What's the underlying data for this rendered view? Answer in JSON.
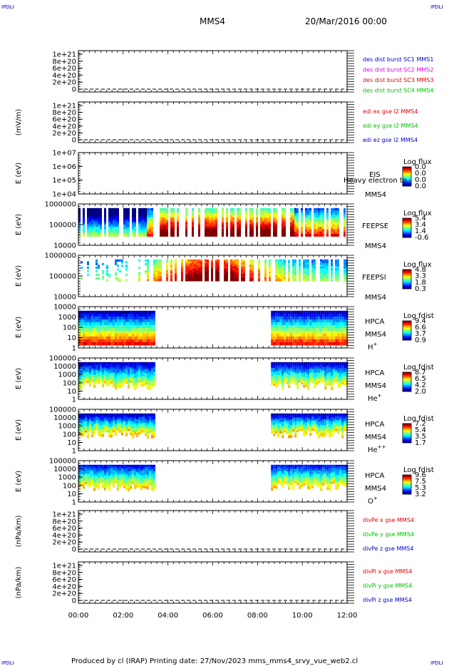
{
  "corner_label": "IPDLI",
  "header": {
    "spacecraft": "MMS4",
    "datetime": "20/Mar/2016 00:00"
  },
  "footer": {
    "text": "Produced by cl (IRAP)   Printing date: 27/Nov/2023   mms_mms4_srvy_vue_web2.cl"
  },
  "colors": {
    "red": "#e00000",
    "magenta": "#e000e0",
    "green": "#00c000",
    "blue": "#0000c0",
    "black": "#000000"
  },
  "chart_data": {
    "type": "heatmap",
    "x_ticks": [
      "00:00",
      "02:00",
      "04:00",
      "06:00",
      "08:00",
      "10:00",
      "12:00"
    ],
    "xlim": [
      "00:00",
      "12:00"
    ],
    "panels": [
      {
        "kind": "line",
        "ylabel": "",
        "yticks": [
          "1e+21",
          "8e+20",
          "6e+20",
          "4e+20",
          "2e+20",
          "0"
        ],
        "legend": [
          {
            "text": "des dist burst SC1 MMS1",
            "color": "blue"
          },
          {
            "text": "des dist burst SC2 MMS2",
            "color": "magenta"
          },
          {
            "text": "des dist burst SC3 MMS3",
            "color": "red"
          },
          {
            "text": "des dist burst SC4 MMS4",
            "color": "green"
          }
        ]
      },
      {
        "kind": "line",
        "ylabel": "(mV/m)",
        "yticks": [
          "1e+21",
          "8e+20",
          "6e+20",
          "4e+20",
          "2e+20",
          "0"
        ],
        "legend": [
          {
            "text": "edi ex gse l2 MMS4",
            "color": "red"
          },
          {
            "text": "edi ey gse l2 MMS4",
            "color": "green"
          },
          {
            "text": "edi ez gse l2 MMS4",
            "color": "blue"
          }
        ]
      },
      {
        "kind": "spec",
        "ylabel": "E (eV)",
        "yticks": [
          "1e+07",
          "1e+06",
          "1e+05",
          "1e+04"
        ],
        "instrument": "EIS",
        "instrument_extra": "Heavy electron to",
        "sc": "MMS4",
        "species": "",
        "cbar_title": "Log flux",
        "cbar_ticks": [
          "0.0",
          "0.0",
          "0.0",
          "0.0"
        ],
        "segments": []
      },
      {
        "kind": "spec",
        "ylabel": "E (eV)",
        "yticks": [
          "1000000",
          "100000",
          "10000"
        ],
        "instrument": "FEEPSE",
        "sc": "MMS4",
        "species": "",
        "cbar_title": "Log flux",
        "cbar_ticks": [
          "5.4",
          "3.4",
          "1.4",
          "-0.6"
        ],
        "segments": [
          [
            0,
            12
          ]
        ],
        "pattern": "feepse"
      },
      {
        "kind": "spec",
        "ylabel": "E (eV)",
        "yticks": [
          "1000000",
          "100000",
          "10000"
        ],
        "instrument": "FEEPSI",
        "sc": "MMS4",
        "species": "",
        "cbar_title": "Log flux",
        "cbar_ticks": [
          "4.8",
          "3.3",
          "1.8",
          "0.3"
        ],
        "segments": [
          [
            0,
            12
          ]
        ],
        "pattern": "feepsi"
      },
      {
        "kind": "spec",
        "ylabel": "E (eV)",
        "yticks": [
          "10000",
          "1000",
          "100",
          "10",
          "1"
        ],
        "instrument": "HPCA",
        "sc": "MMS4",
        "species": "H",
        "species_sup": "+",
        "cbar_title": "Log fdist",
        "cbar_ticks": [
          "9.4",
          "6.6",
          "3.7",
          "0.9"
        ],
        "segments": [
          [
            0,
            3.4
          ],
          [
            8.6,
            12
          ]
        ],
        "pattern": "hplus"
      },
      {
        "kind": "spec",
        "ylabel": "E (eV)",
        "yticks": [
          "100000",
          "10000",
          "1000",
          "100",
          "10",
          "1"
        ],
        "instrument": "HPCA",
        "sc": "MMS4",
        "species": "He",
        "species_sup": "+",
        "cbar_title": "Log fdist",
        "cbar_ticks": [
          "8.7",
          "6.5",
          "4.2",
          "2.0"
        ],
        "segments": [
          [
            0,
            3.4
          ],
          [
            8.6,
            12
          ]
        ],
        "pattern": "heplus"
      },
      {
        "kind": "spec",
        "ylabel": "E (eV)",
        "yticks": [
          "100000",
          "10000",
          "1000",
          "100",
          "10",
          "1"
        ],
        "instrument": "HPCA",
        "sc": "MMS4",
        "species": "He",
        "species_sup": "++",
        "cbar_title": "Log fdist",
        "cbar_ticks": [
          "7.2",
          "5.4",
          "3.5",
          "1.7"
        ],
        "segments": [
          [
            0,
            3.4
          ],
          [
            8.6,
            12
          ]
        ],
        "pattern": "heplusplus"
      },
      {
        "kind": "spec",
        "ylabel": "E (eV)",
        "yticks": [
          "100000",
          "10000",
          "1000",
          "100",
          "10",
          "1"
        ],
        "instrument": "HPCA",
        "sc": "MMS4",
        "species": "O",
        "species_sup": "+",
        "cbar_title": "Log fdist",
        "cbar_ticks": [
          "9.6",
          "7.5",
          "5.3",
          "3.2"
        ],
        "segments": [
          [
            0,
            3.4
          ],
          [
            8.6,
            12
          ]
        ],
        "pattern": "oplus"
      },
      {
        "kind": "line",
        "ylabel": "(nPa/km)",
        "yticks": [
          "1e+21",
          "8e+20",
          "6e+20",
          "4e+20",
          "2e+20",
          "0"
        ],
        "legend": [
          {
            "text": "divPe x gse MMS4",
            "color": "red"
          },
          {
            "text": "divPe y gse MMS4",
            "color": "green"
          },
          {
            "text": "divPe z gse MMS4",
            "color": "blue"
          }
        ]
      },
      {
        "kind": "line",
        "ylabel": "(nPa/km)",
        "yticks": [
          "1e+21",
          "8e+20",
          "6e+20",
          "4e+20",
          "2e+20",
          "0"
        ],
        "legend": [
          {
            "text": "divPi x gse MMS4",
            "color": "red"
          },
          {
            "text": "divPi y gse MMS4",
            "color": "green"
          },
          {
            "text": "divPi z gse MMS4",
            "color": "blue"
          }
        ]
      }
    ]
  }
}
